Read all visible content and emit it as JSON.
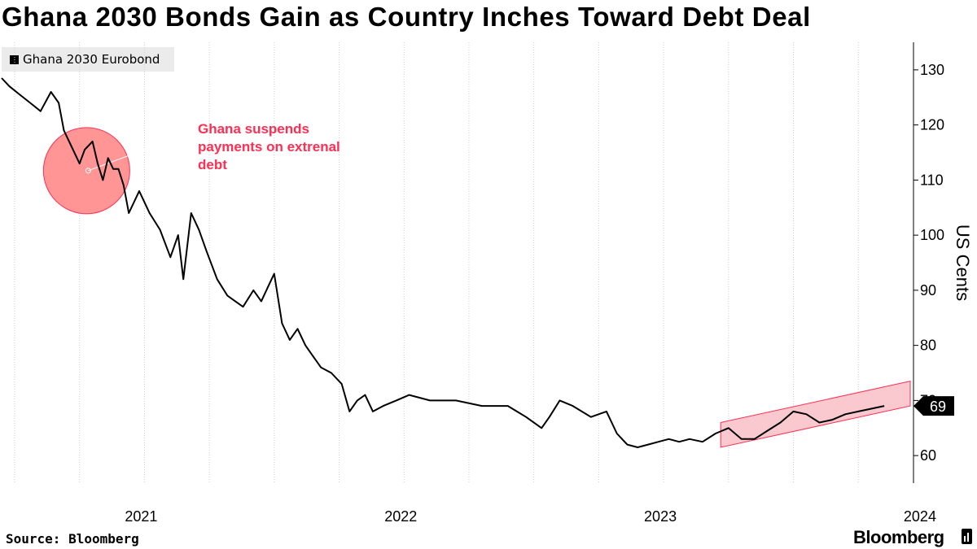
{
  "title": "Ghana 2030 Bonds Gain as Country Inches Toward Debt Deal",
  "source": "Source: Bloomberg",
  "brand": "Bloomberg",
  "icons": {
    "brand_mark": "bloomberg-bars-icon"
  },
  "colors": {
    "line": "#000000",
    "highlight": "#ff2e52",
    "highlight_fill": "#ff8a8a",
    "channel_fill": "#f9c9cf"
  },
  "chart_data": {
    "type": "line",
    "title": "Ghana 2030 Bonds Gain as Country Inches Toward Debt Deal",
    "ylabel": "US Cents",
    "ylim": [
      55,
      135
    ],
    "yticks": [
      60,
      70,
      80,
      90,
      100,
      110,
      120,
      130
    ],
    "xlim": [
      2020.95,
      2024.45
    ],
    "xticks": [
      {
        "label": "2021",
        "pos": 2021.0
      },
      {
        "label": "2022",
        "pos": 2022.0
      },
      {
        "label": "2023",
        "pos": 2023.0
      },
      {
        "label": "2024",
        "pos": 2024.0
      }
    ],
    "grid": "vertical",
    "legend": "top-left",
    "series": [
      {
        "name": "Ghana 2030 Eurobond",
        "last_value_label": "69",
        "x": [
          2020.95,
          2020.98,
          2021.02,
          2021.06,
          2021.1,
          2021.14,
          2021.17,
          2021.19,
          2021.22,
          2021.25,
          2021.27,
          2021.3,
          2021.32,
          2021.34,
          2021.36,
          2021.38,
          2021.4,
          2021.42,
          2021.44,
          2021.46,
          2021.48,
          2021.52,
          2021.56,
          2021.6,
          2021.63,
          2021.65,
          2021.68,
          2021.71,
          2021.74,
          2021.78,
          2021.82,
          2021.85,
          2021.88,
          2021.92,
          2021.95,
          2021.98,
          2022.0,
          2022.03,
          2022.06,
          2022.09,
          2022.12,
          2022.15,
          2022.18,
          2022.22,
          2022.26,
          2022.29,
          2022.32,
          2022.35,
          2022.38,
          2022.42,
          2022.47,
          2022.52,
          2022.6,
          2022.7,
          2022.8,
          2022.9,
          2022.97,
          2023.03,
          2023.06,
          2023.1,
          2023.15,
          2023.22,
          2023.28,
          2023.32,
          2023.36,
          2023.4,
          2023.44,
          2023.48,
          2023.52,
          2023.56,
          2023.6,
          2023.65,
          2023.7,
          2023.75,
          2023.8,
          2023.85,
          2023.9,
          2023.95,
          2024.0,
          2024.05,
          2024.1,
          2024.15,
          2024.2,
          2024.25,
          2024.3,
          2024.35
        ],
        "y": [
          128.5,
          127,
          125.5,
          124,
          122.5,
          126,
          124,
          119,
          116,
          113,
          115.5,
          117,
          113,
          110,
          114,
          112,
          112,
          109,
          104,
          106,
          108,
          104,
          101,
          96,
          100,
          92,
          104,
          101,
          97,
          92,
          89,
          88,
          87,
          90,
          88,
          91,
          93,
          84,
          81,
          83,
          80,
          78,
          76,
          75,
          73,
          68,
          70,
          71,
          68,
          69,
          70,
          71,
          70,
          70,
          69,
          69,
          67,
          65,
          67,
          70,
          69,
          67,
          68,
          64,
          62,
          61.5,
          62,
          62.5,
          63,
          62.5,
          63,
          62.5,
          64,
          65,
          63,
          63,
          64.5,
          66,
          68,
          67.5,
          66,
          66.5,
          67.5,
          68,
          68.5,
          69
        ]
      }
    ],
    "annotations": [
      {
        "text": "Ghana suspends payments on extrenal debt",
        "x": 2021.34,
        "y": 112
      }
    ],
    "trend_channel": {
      "x": [
        2023.72,
        2024.45
      ],
      "upper": [
        66,
        73.5
      ],
      "lower": [
        61.5,
        69
      ]
    }
  }
}
